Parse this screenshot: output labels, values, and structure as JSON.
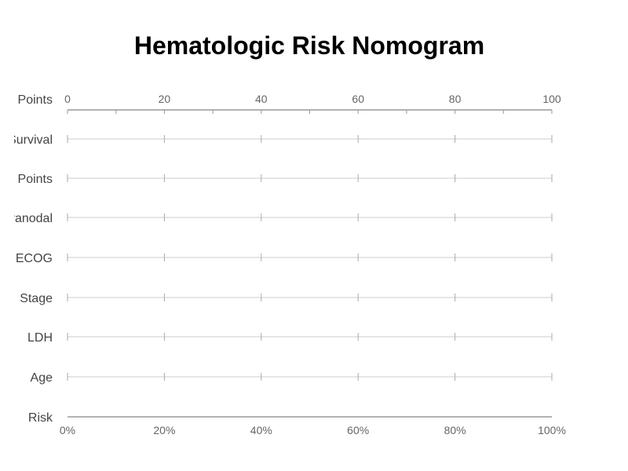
{
  "chart_data": {
    "type": "nomogram",
    "title": "Hematologic Risk Nomogram",
    "rows": [
      {
        "label": "Points",
        "axis": "points"
      },
      {
        "label": "Survival",
        "axis": "plain"
      },
      {
        "label": "Points",
        "axis": "plain"
      },
      {
        "label": "Extranodal",
        "axis": "plain"
      },
      {
        "label": "ECOG",
        "axis": "plain"
      },
      {
        "label": "Stage",
        "axis": "plain"
      },
      {
        "label": "LDH",
        "axis": "plain"
      },
      {
        "label": "Age",
        "axis": "plain"
      },
      {
        "label": "Risk",
        "axis": "risk"
      }
    ],
    "points_axis": {
      "range": [
        0,
        100
      ],
      "major_ticks": [
        0,
        20,
        40,
        60,
        80,
        100
      ],
      "minor_step": 10,
      "tick_labels": [
        "0",
        "20",
        "40",
        "60",
        "80",
        "100"
      ]
    },
    "row_axis": {
      "range": [
        0,
        100
      ],
      "ticks": [
        0,
        20,
        40,
        60,
        80,
        100
      ]
    },
    "risk_axis": {
      "range": [
        0,
        1
      ],
      "major_ticks": [
        0,
        0.2,
        0.4,
        0.6,
        0.8,
        1.0
      ],
      "tick_labels": [
        "0%",
        "20%",
        "40%",
        "60%",
        "80%",
        "100%"
      ]
    },
    "colors": {
      "main_axis": "#999999",
      "row_line": "#cccccc",
      "tick": "#aaaaaa"
    }
  }
}
